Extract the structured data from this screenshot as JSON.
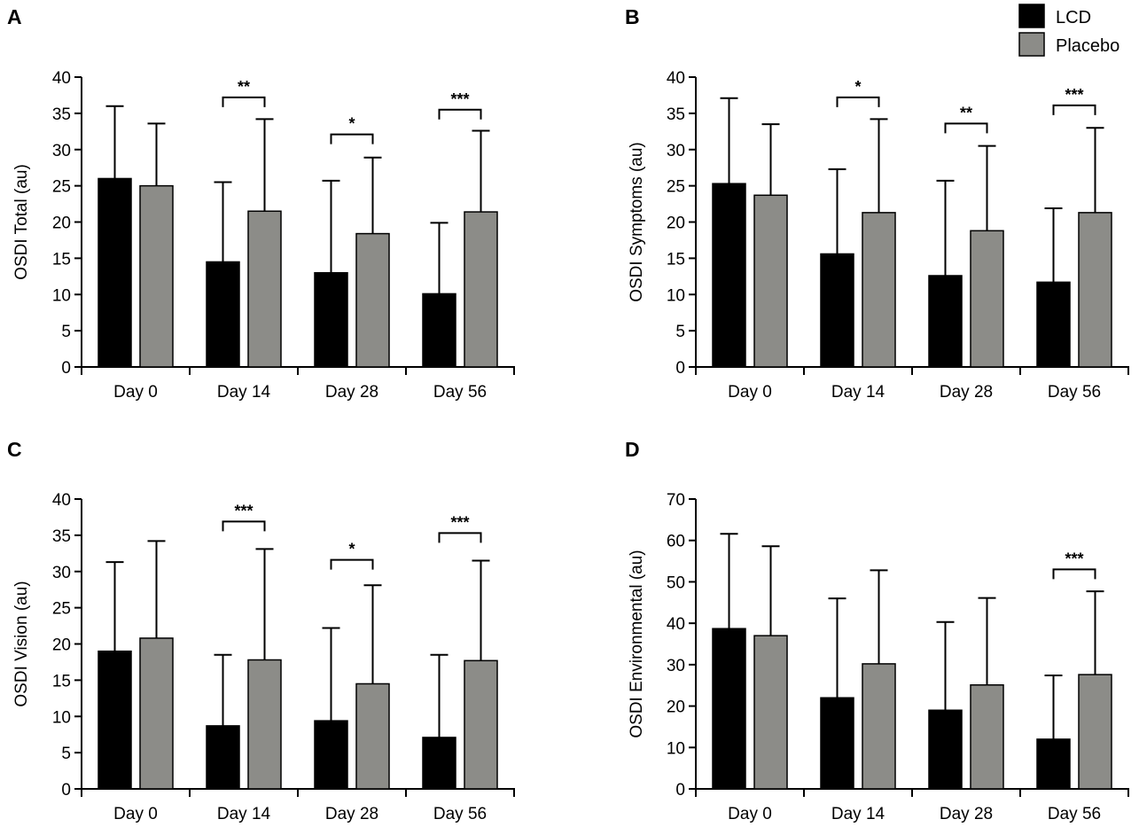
{
  "legend": [
    {
      "name": "LCD",
      "color": "#000000"
    },
    {
      "name": "Placebo",
      "color": "#8c8c88"
    }
  ],
  "chart_data": [
    {
      "panel": "A",
      "type": "bar",
      "title": "",
      "xlabel": "",
      "ylabel": "OSDI Total (au)",
      "ylim": [
        0,
        40
      ],
      "yticks": [
        0,
        5,
        10,
        15,
        20,
        25,
        30,
        35,
        40
      ],
      "categories": [
        "Day 0",
        "Day 14",
        "Day 28",
        "Day 56"
      ],
      "series": [
        {
          "name": "LCD",
          "values": [
            26,
            14.5,
            13,
            10.1
          ],
          "error": [
            10,
            11,
            12.7,
            9.8
          ]
        },
        {
          "name": "Placebo",
          "values": [
            25,
            21.5,
            18.4,
            21.4
          ],
          "error": [
            8.6,
            12.7,
            10.5,
            11.2
          ]
        }
      ],
      "significance": [
        {
          "category": "Day 14",
          "label": "**",
          "value": 37.2
        },
        {
          "category": "Day 28",
          "label": "*",
          "value": 32.1
        },
        {
          "category": "Day 56",
          "label": "***",
          "value": 35.5
        }
      ]
    },
    {
      "panel": "B",
      "type": "bar",
      "title": "",
      "xlabel": "",
      "ylabel": "OSDI Symptoms (au)",
      "ylim": [
        0,
        40
      ],
      "yticks": [
        0,
        5,
        10,
        15,
        20,
        25,
        30,
        35,
        40
      ],
      "categories": [
        "Day 0",
        "Day 14",
        "Day 28",
        "Day 56"
      ],
      "series": [
        {
          "name": "LCD",
          "values": [
            25.3,
            15.6,
            12.6,
            11.7
          ],
          "error": [
            11.8,
            11.7,
            13.1,
            10.2
          ]
        },
        {
          "name": "Placebo",
          "values": [
            23.7,
            21.3,
            18.8,
            21.3
          ],
          "error": [
            9.8,
            12.9,
            11.7,
            11.7
          ]
        }
      ],
      "significance": [
        {
          "category": "Day 14",
          "label": "*",
          "value": 37.2
        },
        {
          "category": "Day 28",
          "label": "**",
          "value": 33.6
        },
        {
          "category": "Day 56",
          "label": "***",
          "value": 36.1
        }
      ]
    },
    {
      "panel": "C",
      "type": "bar",
      "title": "",
      "xlabel": "",
      "ylabel": "OSDI Vision (au)",
      "ylim": [
        0,
        40
      ],
      "yticks": [
        0,
        5,
        10,
        15,
        20,
        25,
        30,
        35,
        40
      ],
      "categories": [
        "Day 0",
        "Day 14",
        "Day 28",
        "Day 56"
      ],
      "series": [
        {
          "name": "LCD",
          "values": [
            19,
            8.7,
            9.4,
            7.1
          ],
          "error": [
            12.3,
            9.8,
            12.8,
            11.4
          ]
        },
        {
          "name": "Placebo",
          "values": [
            20.8,
            17.8,
            14.5,
            17.7
          ],
          "error": [
            13.4,
            15.3,
            13.6,
            13.8
          ]
        }
      ],
      "significance": [
        {
          "category": "Day 14",
          "label": "***",
          "value": 36.9
        },
        {
          "category": "Day 28",
          "label": "*",
          "value": 31.6
        },
        {
          "category": "Day 56",
          "label": "***",
          "value": 35.3
        }
      ]
    },
    {
      "panel": "D",
      "type": "bar",
      "title": "",
      "xlabel": "",
      "ylabel": "OSDI Environmental (au)",
      "ylim": [
        0,
        70
      ],
      "yticks": [
        0,
        10,
        20,
        30,
        40,
        50,
        60,
        70
      ],
      "categories": [
        "Day 0",
        "Day 14",
        "Day 28",
        "Day 56"
      ],
      "series": [
        {
          "name": "LCD",
          "values": [
            38.7,
            22,
            19,
            12
          ],
          "error": [
            22.9,
            24,
            21.3,
            15.4
          ]
        },
        {
          "name": "Placebo",
          "values": [
            37,
            30.2,
            25.1,
            27.6
          ],
          "error": [
            21.6,
            22.6,
            21,
            20.1
          ]
        }
      ],
      "significance": [
        {
          "category": "Day 56",
          "label": "***",
          "value": 53
        }
      ]
    }
  ]
}
